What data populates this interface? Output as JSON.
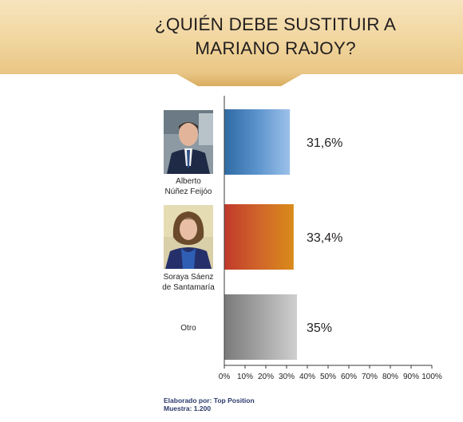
{
  "title_line1": "¿QUIÉN DEBE SUSTITUIR A",
  "title_line2": "MARIANO RAJOY?",
  "chart_data": {
    "type": "bar",
    "orientation": "horizontal",
    "title": "¿QUIÉN DEBE SUSTITUIR A MARIANO RAJOY?",
    "categories": [
      {
        "line1": "Alberto",
        "line2": "Núñez Feijóo"
      },
      {
        "line1": "Soraya Sáenz",
        "line2": "de Santamaría"
      },
      {
        "line1": "Otro",
        "line2": ""
      }
    ],
    "values": [
      31.6,
      33.4,
      35
    ],
    "value_labels": [
      "31,6%",
      "33,4%",
      "35%"
    ],
    "bar_colors": [
      [
        "#2f6aa3",
        "#5b93cc",
        "#9cc1ea"
      ],
      [
        "#c0392b",
        "#d0652a",
        "#d98b1a"
      ],
      [
        "#7a7a7a",
        "#a4a4a4",
        "#cfcfcf"
      ]
    ],
    "xlim": [
      0,
      100
    ],
    "x_ticks": [
      "0%",
      "10%",
      "20%",
      "30%",
      "40%",
      "50%",
      "60%",
      "70%",
      "80%",
      "90%",
      "100%"
    ],
    "grid": false,
    "legend": "none"
  },
  "footer": {
    "line1": "Elaborado por: Top Position",
    "line2": "Muestra: 1.200"
  },
  "colors": {
    "header_bg": "#f0d49b",
    "text": "#231f20",
    "footer_text": "#2b3a6b"
  }
}
